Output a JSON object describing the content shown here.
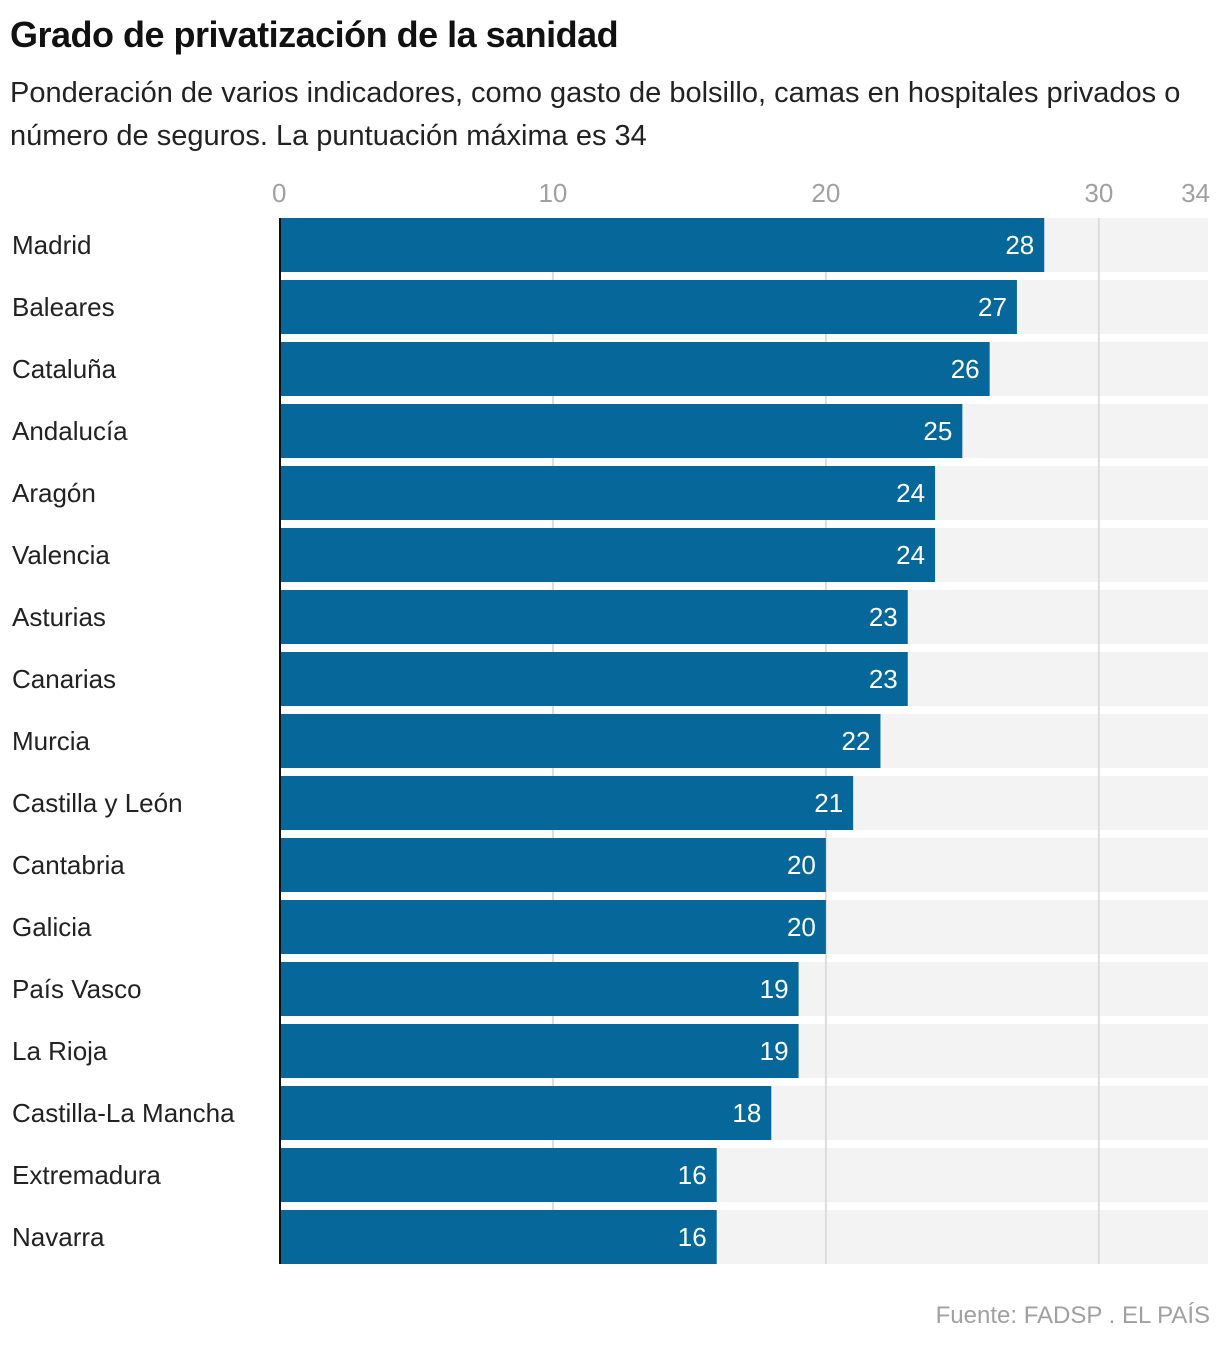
{
  "chart_data": {
    "type": "bar",
    "orientation": "horizontal",
    "title": "Grado de privatización de la sanidad",
    "subtitle": "Ponderación de varios indicadores, como gasto de bolsillo, camas en hospitales privados o número de seguros. La puntuación máxima es 34",
    "categories": [
      "Madrid",
      "Baleares",
      "Cataluña",
      "Andalucía",
      "Aragón",
      "Valencia",
      "Asturias",
      "Canarias",
      "Murcia",
      "Castilla y León",
      "Cantabria",
      "Galicia",
      "País Vasco",
      "La Rioja",
      "Castilla-La Mancha",
      "Extremadura",
      "Navarra"
    ],
    "values": [
      28,
      27,
      26,
      25,
      24,
      24,
      23,
      23,
      22,
      21,
      20,
      20,
      19,
      19,
      18,
      16,
      16
    ],
    "xlim": [
      0,
      34
    ],
    "xticks": [
      "0",
      "10",
      "20",
      "30",
      "34"
    ],
    "xtick_values": [
      0,
      10,
      20,
      30,
      34
    ],
    "gridlines": [
      10,
      20,
      30
    ],
    "grid": true,
    "xlabel": "",
    "ylabel": "",
    "bar_color": "#06689a",
    "track_color": "#f3f3f3",
    "source": "Fuente: FADSP . EL PAÍS"
  }
}
